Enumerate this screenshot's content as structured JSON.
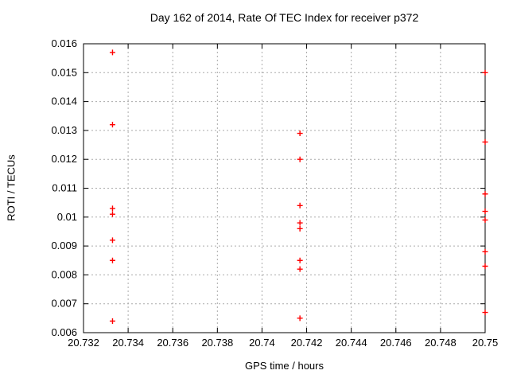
{
  "chart_data": {
    "type": "scatter",
    "title": "Day 162 of 2014, Rate Of TEC Index for receiver p372",
    "xlabel": "GPS time / hours",
    "ylabel": "ROTI / TECUs",
    "xlim": [
      20.732,
      20.75
    ],
    "ylim": [
      0.006,
      0.016
    ],
    "xtick_labels": [
      "20.732",
      "20.734",
      "20.736",
      "20.738",
      "20.74",
      "20.742",
      "20.744",
      "20.746",
      "20.748",
      "20.75"
    ],
    "ytick_labels": [
      "0.006",
      "0.007",
      "0.008",
      "0.009",
      "0.01",
      "0.011",
      "0.012",
      "0.013",
      "0.014",
      "0.015",
      "0.016"
    ],
    "grid": true,
    "legend_position": "none",
    "marker": "plus",
    "marker_color": "#ff0000",
    "grid_color": "#aaaaaa",
    "border_color": "#000000",
    "text_color": "#000000",
    "series": [
      {
        "name": "ROTI",
        "points": [
          [
            20.7333,
            0.0157
          ],
          [
            20.7333,
            0.0132
          ],
          [
            20.7333,
            0.0103
          ],
          [
            20.7333,
            0.0101
          ],
          [
            20.7333,
            0.0092
          ],
          [
            20.7333,
            0.0085
          ],
          [
            20.7333,
            0.0064
          ],
          [
            20.7417,
            0.0129
          ],
          [
            20.7417,
            0.012
          ],
          [
            20.7417,
            0.0104
          ],
          [
            20.7417,
            0.0098
          ],
          [
            20.7417,
            0.0096
          ],
          [
            20.7417,
            0.0085
          ],
          [
            20.7417,
            0.0082
          ],
          [
            20.7417,
            0.0065
          ],
          [
            20.75,
            0.015
          ],
          [
            20.75,
            0.0126
          ],
          [
            20.75,
            0.0108
          ],
          [
            20.75,
            0.0102
          ],
          [
            20.75,
            0.0099
          ],
          [
            20.75,
            0.0088
          ],
          [
            20.75,
            0.0083
          ],
          [
            20.75,
            0.0067
          ]
        ]
      }
    ]
  }
}
